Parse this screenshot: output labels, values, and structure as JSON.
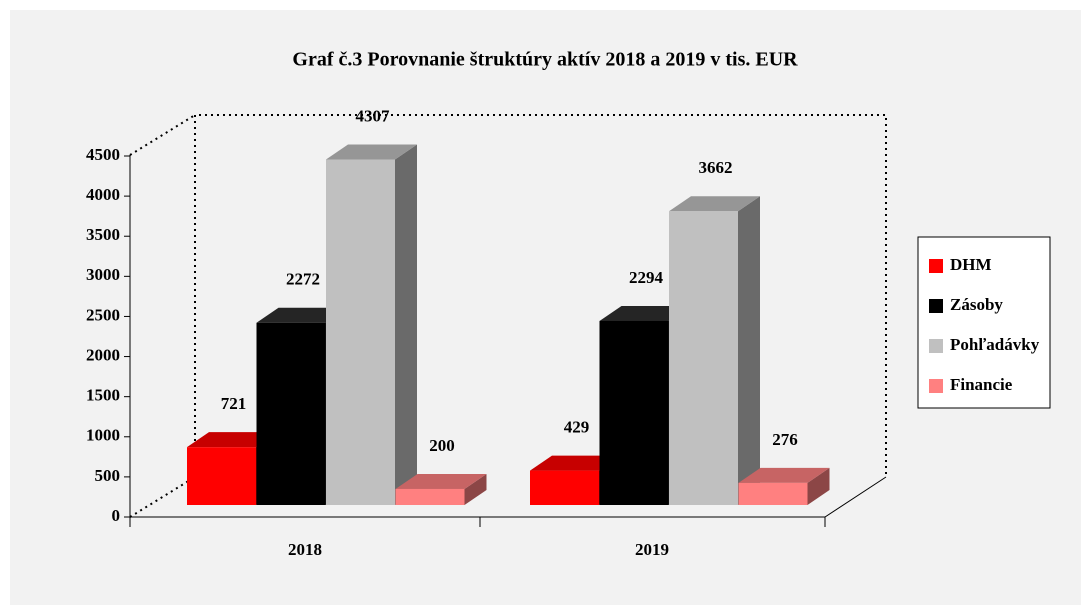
{
  "chart_data": {
    "type": "bar3d",
    "title": "Graf č.3     Porovnanie štruktúry aktív  2018 a 2019 v tis. EUR",
    "categories": [
      "2018",
      "2019"
    ],
    "series": [
      {
        "name": "DHM",
        "color": "#ff0000",
        "values": [
          721,
          429
        ]
      },
      {
        "name": "Zásoby",
        "color": "#000000",
        "values": [
          2272,
          2294
        ]
      },
      {
        "name": "Pohľadávky",
        "color": "#c0c0c0",
        "values": [
          4307,
          3662
        ]
      },
      {
        "name": "Financie",
        "color": "#ff8080",
        "values": [
          200,
          276
        ]
      }
    ],
    "ylim": [
      0,
      4500
    ],
    "yticks": [
      0,
      500,
      1000,
      1500,
      2000,
      2500,
      3000,
      3500,
      4000,
      4500
    ],
    "legend": "right"
  }
}
